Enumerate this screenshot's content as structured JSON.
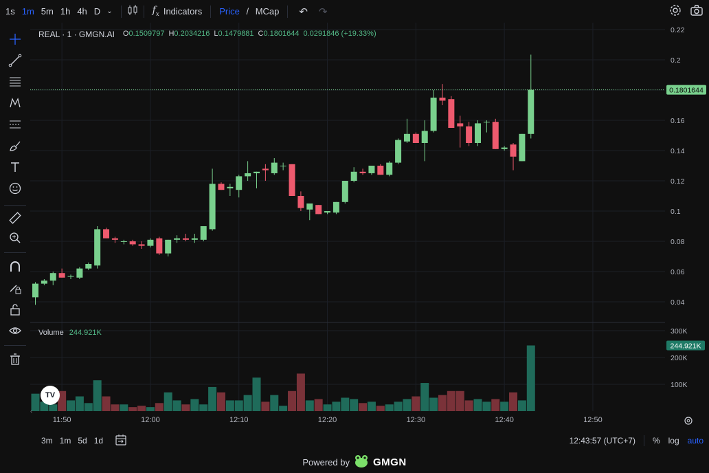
{
  "toolbar": {
    "timeframes": [
      "1s",
      "1m",
      "5m",
      "1h",
      "4h",
      "D"
    ],
    "active_timeframe": "1m",
    "indicators_label": "Indicators",
    "price_label": "Price",
    "slash": " / ",
    "mcap_label": "MCap",
    "icons": [
      "chevron-down-icon",
      "candles-icon",
      "fx-icon",
      "undo-icon",
      "redo-icon",
      "settings-icon",
      "camera-icon"
    ]
  },
  "legend": {
    "symbol": "REAL · 1 · GMGN.AI",
    "o_label": "O",
    "o": "0.1509797",
    "h_label": "H",
    "h": "0.2034216",
    "l_label": "L",
    "l": "0.1479881",
    "c_label": "C",
    "c": "0.1801644",
    "change": "0.0291846 (+19.33%)"
  },
  "volume_legend": {
    "label": "Volume",
    "value": "244.921K"
  },
  "left_tools": [
    "crosshair-icon",
    "trendline-icon",
    "fib-icon",
    "pattern-icon",
    "projection-icon",
    "brush-icon",
    "text-icon",
    "emoji-icon",
    "ruler-icon",
    "zoom-in-icon",
    "magnet-icon",
    "lock-draw-icon",
    "lock-icon",
    "eye-icon",
    "trash-icon"
  ],
  "bottom": {
    "ranges": [
      "3m",
      "1m",
      "5d",
      "1d"
    ],
    "time": "12:43:57 (UTC+7)",
    "percent": "%",
    "log": "log",
    "auto": "auto"
  },
  "powered": {
    "prefix": "Powered by",
    "brand": "GMGN"
  },
  "colors": {
    "up": "#79d08d",
    "down": "#ee5a6e",
    "vol_up": "#1f6b5a",
    "vol_down": "#7a3239",
    "last_price_bg": "#79d08d"
  },
  "chart_data": {
    "type": "candlestick",
    "price_axis": {
      "ticks": [
        0.04,
        0.06,
        0.08,
        0.1,
        0.12,
        0.14,
        0.16,
        0.18,
        0.2,
        0.22
      ],
      "tick_labels": [
        "0.04",
        "0.06",
        "0.08",
        "0.1",
        "0.12",
        "0.14",
        "0.16",
        "0.18",
        "0.2",
        "0.22"
      ],
      "last_price_label": "0.1801644"
    },
    "volume_axis": {
      "ticks": [
        100000,
        200000,
        300000
      ],
      "tick_labels": [
        "100K",
        "200K",
        "300K"
      ],
      "last_volume_label": "244.921K"
    },
    "time_axis": {
      "tick_labels": [
        "11:50",
        "12:00",
        "12:10",
        "12:20",
        "12:30",
        "12:40",
        "12:50"
      ]
    },
    "candles": [
      [
        0.043,
        0.053,
        0.038,
        0.052,
        65000
      ],
      [
        0.052,
        0.055,
        0.051,
        0.054,
        35000
      ],
      [
        0.054,
        0.06,
        0.051,
        0.059,
        25000
      ],
      [
        0.059,
        0.062,
        0.056,
        0.056,
        75000
      ],
      [
        0.057,
        0.058,
        0.055,
        0.057,
        40000
      ],
      [
        0.056,
        0.063,
        0.055,
        0.062,
        55000
      ],
      [
        0.062,
        0.066,
        0.061,
        0.065,
        30000
      ],
      [
        0.064,
        0.09,
        0.062,
        0.088,
        115000
      ],
      [
        0.088,
        0.089,
        0.082,
        0.082,
        55000
      ],
      [
        0.082,
        0.083,
        0.079,
        0.081,
        25000
      ],
      [
        0.08,
        0.081,
        0.078,
        0.08,
        25000
      ],
      [
        0.08,
        0.081,
        0.077,
        0.078,
        15000
      ],
      [
        0.078,
        0.08,
        0.075,
        0.077,
        20000
      ],
      [
        0.077,
        0.082,
        0.076,
        0.081,
        15000
      ],
      [
        0.082,
        0.083,
        0.071,
        0.072,
        30000
      ],
      [
        0.072,
        0.081,
        0.07,
        0.081,
        70000
      ],
      [
        0.081,
        0.084,
        0.079,
        0.082,
        40000
      ],
      [
        0.082,
        0.085,
        0.08,
        0.081,
        25000
      ],
      [
        0.081,
        0.085,
        0.079,
        0.082,
        45000
      ],
      [
        0.081,
        0.09,
        0.08,
        0.09,
        25000
      ],
      [
        0.088,
        0.128,
        0.087,
        0.118,
        90000
      ],
      [
        0.118,
        0.119,
        0.114,
        0.114,
        70000
      ],
      [
        0.115,
        0.118,
        0.11,
        0.116,
        40000
      ],
      [
        0.114,
        0.124,
        0.109,
        0.123,
        40000
      ],
      [
        0.123,
        0.133,
        0.12,
        0.125,
        60000
      ],
      [
        0.125,
        0.126,
        0.115,
        0.126,
        125000
      ],
      [
        0.128,
        0.131,
        0.12,
        0.127,
        35000
      ],
      [
        0.125,
        0.135,
        0.124,
        0.132,
        60000
      ],
      [
        0.13,
        0.132,
        0.127,
        0.13,
        20000
      ],
      [
        0.131,
        0.131,
        0.11,
        0.11,
        75000
      ],
      [
        0.11,
        0.113,
        0.1,
        0.102,
        140000
      ],
      [
        0.101,
        0.105,
        0.094,
        0.105,
        40000
      ],
      [
        0.104,
        0.104,
        0.098,
        0.098,
        45000
      ],
      [
        0.099,
        0.1,
        0.098,
        0.1,
        25000
      ],
      [
        0.099,
        0.106,
        0.098,
        0.106,
        35000
      ],
      [
        0.106,
        0.12,
        0.105,
        0.12,
        50000
      ],
      [
        0.12,
        0.129,
        0.119,
        0.126,
        45000
      ],
      [
        0.126,
        0.128,
        0.124,
        0.125,
        30000
      ],
      [
        0.125,
        0.13,
        0.124,
        0.13,
        35000
      ],
      [
        0.13,
        0.131,
        0.124,
        0.124,
        20000
      ],
      [
        0.124,
        0.133,
        0.123,
        0.132,
        25000
      ],
      [
        0.132,
        0.148,
        0.131,
        0.147,
        35000
      ],
      [
        0.146,
        0.161,
        0.145,
        0.151,
        45000
      ],
      [
        0.151,
        0.152,
        0.145,
        0.145,
        55000
      ],
      [
        0.145,
        0.16,
        0.133,
        0.153,
        105000
      ],
      [
        0.153,
        0.18,
        0.152,
        0.175,
        50000
      ],
      [
        0.175,
        0.184,
        0.17,
        0.173,
        60000
      ],
      [
        0.174,
        0.176,
        0.155,
        0.155,
        75000
      ],
      [
        0.158,
        0.163,
        0.142,
        0.156,
        75000
      ],
      [
        0.156,
        0.159,
        0.143,
        0.145,
        40000
      ],
      [
        0.145,
        0.16,
        0.143,
        0.158,
        45000
      ],
      [
        0.159,
        0.16,
        0.152,
        0.159,
        35000
      ],
      [
        0.159,
        0.161,
        0.141,
        0.141,
        45000
      ],
      [
        0.141,
        0.143,
        0.14,
        0.142,
        35000
      ],
      [
        0.144,
        0.145,
        0.127,
        0.136,
        70000
      ],
      [
        0.133,
        0.151,
        0.133,
        0.151,
        40000
      ],
      [
        0.151,
        0.2034216,
        0.1479881,
        0.1801644,
        244921
      ]
    ]
  }
}
